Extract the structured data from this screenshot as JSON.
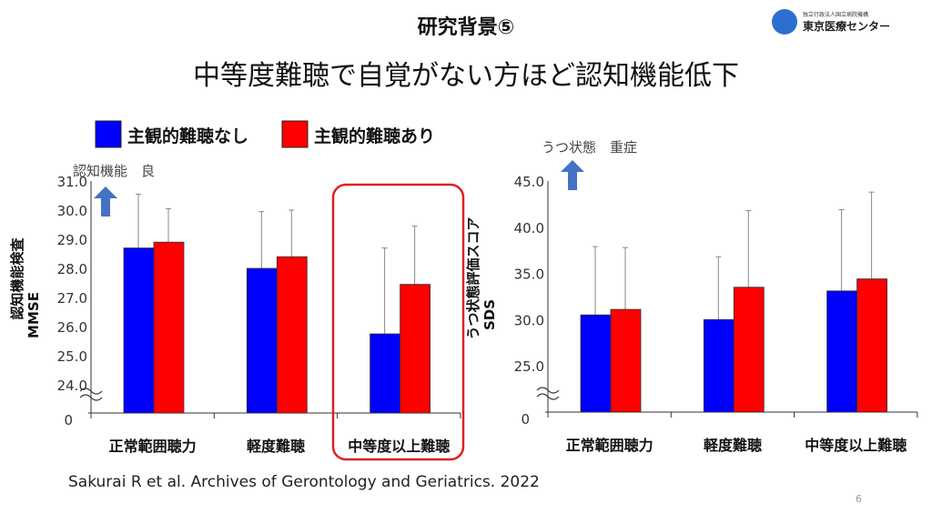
{
  "slide": {
    "title": "研究背景⑤",
    "subtitle": "中等度難聴で自覚がない方ほど認知機能低下",
    "citation": "Sakurai R et al. Archives of Gerontology and Geriatrics.  2022",
    "page_number": "6",
    "logo": {
      "org_small": "独立行政法人国立病院機構",
      "org_name": "東京医療センター"
    }
  },
  "legend": [
    {
      "label": "主観的難聴なし",
      "color": "#0000ff"
    },
    {
      "label": "主観的難聴あり",
      "color": "#ff0000"
    }
  ],
  "chart_data": [
    {
      "type": "bar",
      "categories": [
        "正常範囲聴力",
        "軽度難聴",
        "中等度以上難聴"
      ],
      "series": [
        {
          "name": "主観的難聴なし",
          "values": [
            28.7,
            28.0,
            25.75
          ],
          "error_upper": [
            30.55,
            29.95,
            28.7
          ]
        },
        {
          "name": "主観的難聴あり",
          "values": [
            28.9,
            28.4,
            27.45
          ],
          "error_upper": [
            30.05,
            30.0,
            29.45
          ]
        }
      ],
      "ylabel_line1": "認知機能検査",
      "ylabel_line2": "MMSE",
      "annotation": "認知機能　良",
      "yticks": [
        "31.0",
        "30.0",
        "29.0",
        "28.0",
        "27.0",
        "26.0",
        "25.0",
        "24.0"
      ],
      "ytick_values": [
        31,
        30,
        29,
        28,
        27,
        26,
        25,
        24
      ],
      "zero_label": "0",
      "ylim": [
        24,
        31
      ],
      "axis_break": true,
      "highlight_category": "中等度以上難聴"
    },
    {
      "type": "bar",
      "categories": [
        "正常範囲聴力",
        "軽度難聴",
        "中等度以上難聴"
      ],
      "series": [
        {
          "name": "主観的難聴なし",
          "values": [
            30.5,
            30.0,
            33.1
          ],
          "error_upper": [
            37.9,
            36.8,
            41.9
          ]
        },
        {
          "name": "主観的難聴あり",
          "values": [
            31.1,
            33.5,
            34.4
          ],
          "error_upper": [
            37.8,
            41.8,
            43.8
          ]
        }
      ],
      "ylabel_line1": "うつ状態評価スコア",
      "ylabel_line2": "SDS",
      "annotation": "うつ状態　重症",
      "yticks": [
        "45.0",
        "40.0",
        "35.0",
        "30.0",
        "25.0"
      ],
      "ytick_values": [
        45,
        40,
        35,
        30,
        25
      ],
      "zero_label": "0",
      "ylim": [
        25,
        45
      ],
      "axis_break": true
    }
  ],
  "colors": {
    "blue": "#0000ff",
    "red": "#ff0000",
    "arrow": "#4472c4",
    "highlight": "#e02020"
  }
}
